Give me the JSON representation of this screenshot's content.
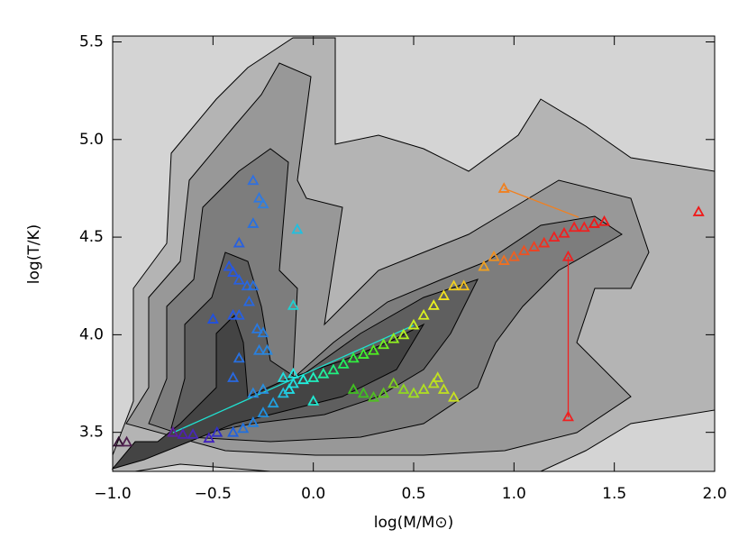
{
  "chart_data": {
    "type": "scatter",
    "xlabel": "log(M/M⊙)",
    "ylabel": "log(T/K)",
    "xlim": [
      -1,
      2
    ],
    "ylim": [
      3.3,
      5.53
    ],
    "xticks": [
      {
        "value": -1,
        "label": "−1.0"
      },
      {
        "value": -0.5,
        "label": "−0.5"
      },
      {
        "value": 0,
        "label": "0.0"
      },
      0.5,
      {
        "value": 1,
        "label": "1.0"
      },
      1.5,
      {
        "value": 2,
        "label": "2.0"
      }
    ],
    "yticks": [
      3.5,
      {
        "value": 4,
        "label": "4.0"
      },
      4.5,
      {
        "value": 5,
        "label": "5.0"
      },
      5.5
    ],
    "x": [
      -0.97,
      -0.93,
      -0.7,
      -0.65,
      -0.6,
      -0.52,
      -0.48,
      -0.3,
      -0.27,
      -0.25,
      -0.3,
      -0.37,
      -0.42,
      -0.4,
      -0.37,
      -0.33,
      -0.3,
      -0.32,
      -0.4,
      -0.37,
      -0.5,
      -0.28,
      -0.25,
      -0.27,
      -0.23,
      -0.37,
      -0.4,
      -0.3,
      -0.25,
      -0.08,
      -0.1,
      -0.15,
      -0.12,
      -0.1,
      0.0,
      -0.4,
      -0.35,
      -0.3,
      -0.25,
      -0.2,
      -0.15,
      -0.1,
      -0.05,
      0.0,
      0.05,
      0.1,
      0.15,
      0.2,
      0.25,
      0.3,
      0.35,
      0.4,
      0.45,
      0.5,
      0.55,
      0.6,
      0.65,
      0.7,
      0.75,
      0.85,
      0.9,
      0.95,
      1.0,
      1.05,
      1.1,
      1.15,
      1.2,
      1.25,
      1.3,
      1.35,
      1.4,
      1.45,
      0.2,
      0.25,
      0.3,
      0.35,
      0.4,
      0.45,
      0.5,
      0.55,
      0.6,
      0.65,
      0.7,
      0.62,
      0.95,
      1.27,
      1.27,
      1.92
    ],
    "values": [
      3.45,
      3.45,
      3.5,
      3.49,
      3.49,
      3.47,
      3.5,
      4.79,
      4.7,
      4.67,
      4.57,
      4.47,
      4.35,
      4.32,
      4.28,
      4.25,
      4.25,
      4.17,
      4.1,
      4.1,
      4.08,
      4.03,
      4.01,
      3.92,
      3.92,
      3.88,
      3.78,
      3.7,
      3.72,
      4.54,
      4.15,
      3.78,
      3.72,
      3.8,
      3.66,
      3.5,
      3.52,
      3.55,
      3.6,
      3.65,
      3.7,
      3.75,
      3.77,
      3.78,
      3.8,
      3.82,
      3.85,
      3.88,
      3.9,
      3.92,
      3.95,
      3.98,
      4.0,
      4.05,
      4.1,
      4.15,
      4.2,
      4.25,
      4.25,
      4.35,
      4.4,
      4.38,
      4.4,
      4.43,
      4.45,
      4.47,
      4.5,
      4.52,
      4.55,
      4.55,
      4.57,
      4.58,
      3.72,
      3.7,
      3.68,
      3.7,
      3.75,
      3.72,
      3.7,
      3.72,
      3.75,
      3.72,
      3.68,
      3.78,
      4.75,
      4.4,
      3.58,
      4.63
    ],
    "colors": [
      "#301030",
      "#502050",
      "#6020a0",
      "#5020b0",
      "#4828b8",
      "#4020c0",
      "#3030c8",
      "#3070e0",
      "#3078e0",
      "#3080e0",
      "#2870e0",
      "#2860e0",
      "#2858e0",
      "#2858e0",
      "#2860e0",
      "#2868e0",
      "#2870e0",
      "#2868e0",
      "#2858e0",
      "#2860e0",
      "#2050e0",
      "#2878e0",
      "#2880e0",
      "#2880e0",
      "#2888e0",
      "#2870e0",
      "#2868e0",
      "#2888e0",
      "#2890e0",
      "#20c0e0",
      "#20d0d0",
      "#20e0e0",
      "#20e0e8",
      "#20e8e0",
      "#20e8d0",
      "#2060e0",
      "#2070e0",
      "#2080e0",
      "#2090e0",
      "#20a0e0",
      "#20c0e0",
      "#20e0e0",
      "#20f0e0",
      "#20f0c0",
      "#20f0a0",
      "#20f080",
      "#20f060",
      "#30f040",
      "#40f030",
      "#50f020",
      "#70f020",
      "#90f020",
      "#b0f020",
      "#c8f020",
      "#d8f020",
      "#e8f020",
      "#f0e020",
      "#f0d020",
      "#f0c020",
      "#f0a020",
      "#f09020",
      "#f07020",
      "#f06020",
      "#f05020",
      "#f04020",
      "#f03020",
      "#f02020",
      "#f02020",
      "#f02020",
      "#f02020",
      "#f01818",
      "#f01818",
      "#40c020",
      "#40c020",
      "#50c020",
      "#60c820",
      "#80d020",
      "#90d820",
      "#a0e020",
      "#b0e020",
      "#b8e020",
      "#c0e020",
      "#c8e020",
      "#c0e020",
      "#f08020",
      "#f02020",
      "#f02020",
      "#f01818"
    ]
  }
}
